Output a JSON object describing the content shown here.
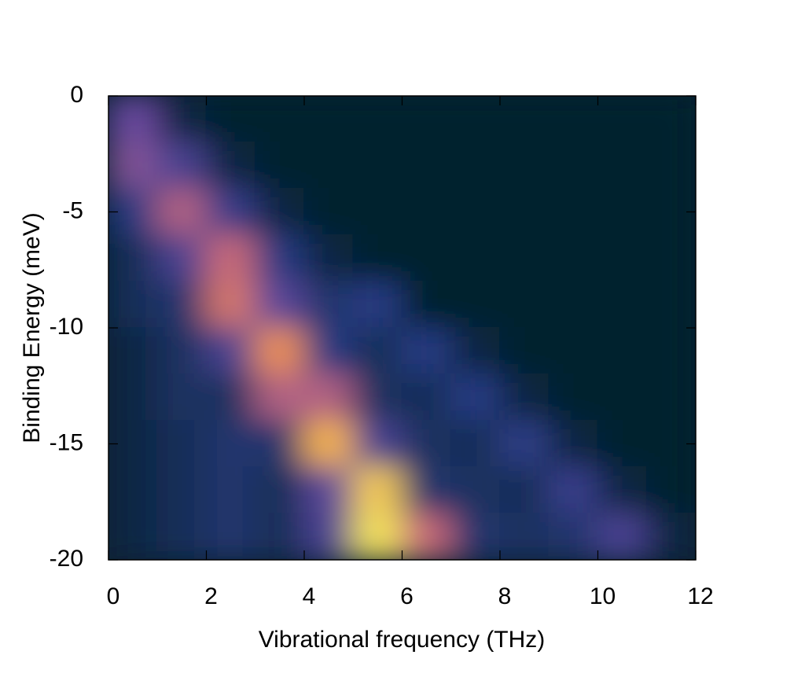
{
  "chart_data": {
    "type": "heatmap",
    "xlabel": "Vibrational frequency (THz)",
    "ylabel": "Binding Energy (meV)",
    "xlim": [
      0,
      12
    ],
    "ylim": [
      -20,
      0
    ],
    "xticks": [
      0,
      2,
      4,
      6,
      8,
      10,
      12
    ],
    "yticks": [
      0,
      -5,
      -10,
      -15,
      -20
    ],
    "x": [
      0.5,
      1.5,
      2.5,
      3.5,
      4.5,
      5.5,
      6.5,
      7.5,
      8.5,
      9.5,
      10.5,
      11.5
    ],
    "y": [
      -1,
      -3,
      -5,
      -7,
      -9,
      -11,
      -13,
      -15,
      -17,
      -19
    ],
    "z": [
      [
        0.4,
        0.05,
        0,
        0,
        0,
        0,
        0,
        0,
        0,
        0,
        0,
        0
      ],
      [
        0.45,
        0.3,
        0.05,
        0,
        0,
        0,
        0,
        0,
        0,
        0,
        0,
        0
      ],
      [
        0.2,
        0.55,
        0.25,
        0.05,
        0,
        0,
        0,
        0,
        0,
        0,
        0,
        0
      ],
      [
        0.1,
        0.3,
        0.6,
        0.2,
        0.05,
        0,
        0,
        0,
        0,
        0,
        0,
        0
      ],
      [
        0.1,
        0.15,
        0.65,
        0.35,
        0.15,
        0.2,
        0,
        0,
        0,
        0,
        0,
        0
      ],
      [
        0.05,
        0.12,
        0.3,
        0.75,
        0.2,
        0.1,
        0.2,
        0.05,
        0,
        0,
        0,
        0
      ],
      [
        0.05,
        0.12,
        0.12,
        0.55,
        0.55,
        0.12,
        0.1,
        0.2,
        0.05,
        0,
        0,
        0
      ],
      [
        0.05,
        0.1,
        0.15,
        0.15,
        0.85,
        0.3,
        0.12,
        0.1,
        0.22,
        0.05,
        0,
        0
      ],
      [
        0.05,
        0.1,
        0.15,
        0.1,
        0.35,
        0.9,
        0.15,
        0.12,
        0.1,
        0.25,
        0.05,
        0
      ],
      [
        0.05,
        0.1,
        0.15,
        0.1,
        0.3,
        0.95,
        0.6,
        0.15,
        0.12,
        0.15,
        0.3,
        0.05
      ]
    ],
    "colormap": [
      "#06202f",
      "#283a82",
      "#6a4aa0",
      "#c86a78",
      "#f89c48",
      "#f0f860"
    ]
  }
}
